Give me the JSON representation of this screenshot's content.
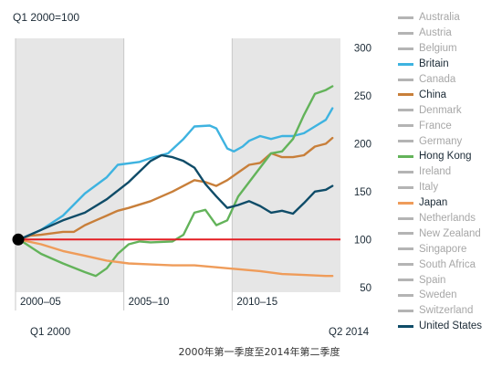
{
  "chart_data": {
    "type": "line",
    "subtitle": "Q1 2000=100",
    "footer": "2000年第一季度至2014年第二季度",
    "x_start_label": "Q1 2000",
    "x_end_label": "Q2 2014",
    "x_band_labels": [
      "2000–05",
      "2005–10",
      "2010–15"
    ],
    "yticks": [
      50,
      100,
      150,
      200,
      250,
      300
    ],
    "ylim": [
      45,
      310
    ],
    "baseline": 100,
    "baseline_color": "#e31e24",
    "band_colors": [
      "#e6e6e6",
      "#ffffff",
      "#e6e6e6"
    ],
    "inactive_color": "#b4b4b4",
    "legend": [
      {
        "name": "Australia",
        "active": false
      },
      {
        "name": "Austria",
        "active": false
      },
      {
        "name": "Belgium",
        "active": false
      },
      {
        "name": "Britain",
        "active": true,
        "color": "#3eb3e0"
      },
      {
        "name": "Canada",
        "active": false
      },
      {
        "name": "China",
        "active": true,
        "color": "#c87f3a"
      },
      {
        "name": "Denmark",
        "active": false
      },
      {
        "name": "France",
        "active": false
      },
      {
        "name": "Germany",
        "active": false
      },
      {
        "name": "Hong Kong",
        "active": true,
        "color": "#63b35a"
      },
      {
        "name": "Ireland",
        "active": false
      },
      {
        "name": "Italy",
        "active": false
      },
      {
        "name": "Japan",
        "active": true,
        "color": "#ef9c5a"
      },
      {
        "name": "Netherlands",
        "active": false
      },
      {
        "name": "New Zealand",
        "active": false
      },
      {
        "name": "Singapore",
        "active": false
      },
      {
        "name": "South Africa",
        "active": false
      },
      {
        "name": "Spain",
        "active": false
      },
      {
        "name": "Sweden",
        "active": false
      },
      {
        "name": "Switzerland",
        "active": false
      },
      {
        "name": "United States",
        "active": true,
        "color": "#0f4c68"
      }
    ],
    "series": [
      {
        "name": "Britain",
        "color": "#3eb3e0",
        "points": [
          [
            2000.0,
            100
          ],
          [
            2001.0,
            110
          ],
          [
            2002.0,
            125
          ],
          [
            2003.0,
            148
          ],
          [
            2004.0,
            165
          ],
          [
            2004.5,
            178
          ],
          [
            2005.5,
            181
          ],
          [
            2006.0,
            185
          ],
          [
            2006.8,
            190
          ],
          [
            2007.5,
            205
          ],
          [
            2008.0,
            218
          ],
          [
            2008.7,
            219
          ],
          [
            2009.0,
            216
          ],
          [
            2009.5,
            195
          ],
          [
            2009.8,
            192
          ],
          [
            2010.2,
            197
          ],
          [
            2010.5,
            203
          ],
          [
            2011.0,
            208
          ],
          [
            2011.5,
            205
          ],
          [
            2012.0,
            208
          ],
          [
            2012.5,
            208
          ],
          [
            2013.0,
            211
          ],
          [
            2013.5,
            218
          ],
          [
            2014.0,
            225
          ],
          [
            2014.3,
            237
          ]
        ]
      },
      {
        "name": "China",
        "color": "#c87f3a",
        "points": [
          [
            2000.0,
            100
          ],
          [
            2000.5,
            104
          ],
          [
            2001.0,
            105
          ],
          [
            2002.0,
            108
          ],
          [
            2002.5,
            108
          ],
          [
            2003.0,
            115
          ],
          [
            2003.5,
            120
          ],
          [
            2004.0,
            125
          ],
          [
            2004.5,
            130
          ],
          [
            2005.0,
            133
          ],
          [
            2006.0,
            140
          ],
          [
            2007.0,
            150
          ],
          [
            2008.0,
            162
          ],
          [
            2008.5,
            160
          ],
          [
            2009.0,
            156
          ],
          [
            2009.5,
            162
          ],
          [
            2010.0,
            170
          ],
          [
            2010.5,
            178
          ],
          [
            2011.0,
            180
          ],
          [
            2011.5,
            190
          ],
          [
            2012.0,
            186
          ],
          [
            2012.5,
            186
          ],
          [
            2013.0,
            188
          ],
          [
            2013.5,
            197
          ],
          [
            2014.0,
            200
          ],
          [
            2014.3,
            206
          ]
        ]
      },
      {
        "name": "Hong Kong",
        "color": "#63b35a",
        "points": [
          [
            2000.0,
            100
          ],
          [
            2001.0,
            85
          ],
          [
            2002.0,
            75
          ],
          [
            2003.0,
            66
          ],
          [
            2003.5,
            62
          ],
          [
            2004.0,
            70
          ],
          [
            2004.5,
            85
          ],
          [
            2005.0,
            95
          ],
          [
            2005.5,
            98
          ],
          [
            2006.0,
            97
          ],
          [
            2007.0,
            98
          ],
          [
            2007.5,
            105
          ],
          [
            2008.0,
            128
          ],
          [
            2008.5,
            131
          ],
          [
            2009.0,
            115
          ],
          [
            2009.5,
            120
          ],
          [
            2010.0,
            145
          ],
          [
            2010.5,
            160
          ],
          [
            2011.0,
            175
          ],
          [
            2011.5,
            190
          ],
          [
            2012.0,
            192
          ],
          [
            2012.5,
            205
          ],
          [
            2013.0,
            230
          ],
          [
            2013.5,
            252
          ],
          [
            2014.0,
            256
          ],
          [
            2014.3,
            260
          ]
        ]
      },
      {
        "name": "Japan",
        "color": "#ef9c5a",
        "points": [
          [
            2000.0,
            100
          ],
          [
            2001.0,
            95
          ],
          [
            2002.0,
            88
          ],
          [
            2003.0,
            83
          ],
          [
            2004.0,
            78
          ],
          [
            2005.0,
            75
          ],
          [
            2006.0,
            74
          ],
          [
            2007.0,
            73
          ],
          [
            2008.0,
            73
          ],
          [
            2009.0,
            71
          ],
          [
            2010.0,
            69
          ],
          [
            2011.0,
            67
          ],
          [
            2012.0,
            64
          ],
          [
            2013.0,
            63
          ],
          [
            2014.0,
            62
          ],
          [
            2014.3,
            62
          ]
        ]
      },
      {
        "name": "United States",
        "color": "#0f4c68",
        "points": [
          [
            2000.0,
            100
          ],
          [
            2001.0,
            110
          ],
          [
            2002.0,
            120
          ],
          [
            2003.0,
            128
          ],
          [
            2004.0,
            142
          ],
          [
            2005.0,
            160
          ],
          [
            2006.0,
            182
          ],
          [
            2006.5,
            188
          ],
          [
            2007.0,
            186
          ],
          [
            2007.5,
            182
          ],
          [
            2008.0,
            175
          ],
          [
            2008.5,
            158
          ],
          [
            2009.0,
            145
          ],
          [
            2009.5,
            133
          ],
          [
            2010.0,
            136
          ],
          [
            2010.5,
            140
          ],
          [
            2011.0,
            135
          ],
          [
            2011.5,
            128
          ],
          [
            2012.0,
            130
          ],
          [
            2012.5,
            127
          ],
          [
            2013.0,
            138
          ],
          [
            2013.5,
            150
          ],
          [
            2014.0,
            152
          ],
          [
            2014.3,
            156
          ]
        ]
      }
    ]
  }
}
